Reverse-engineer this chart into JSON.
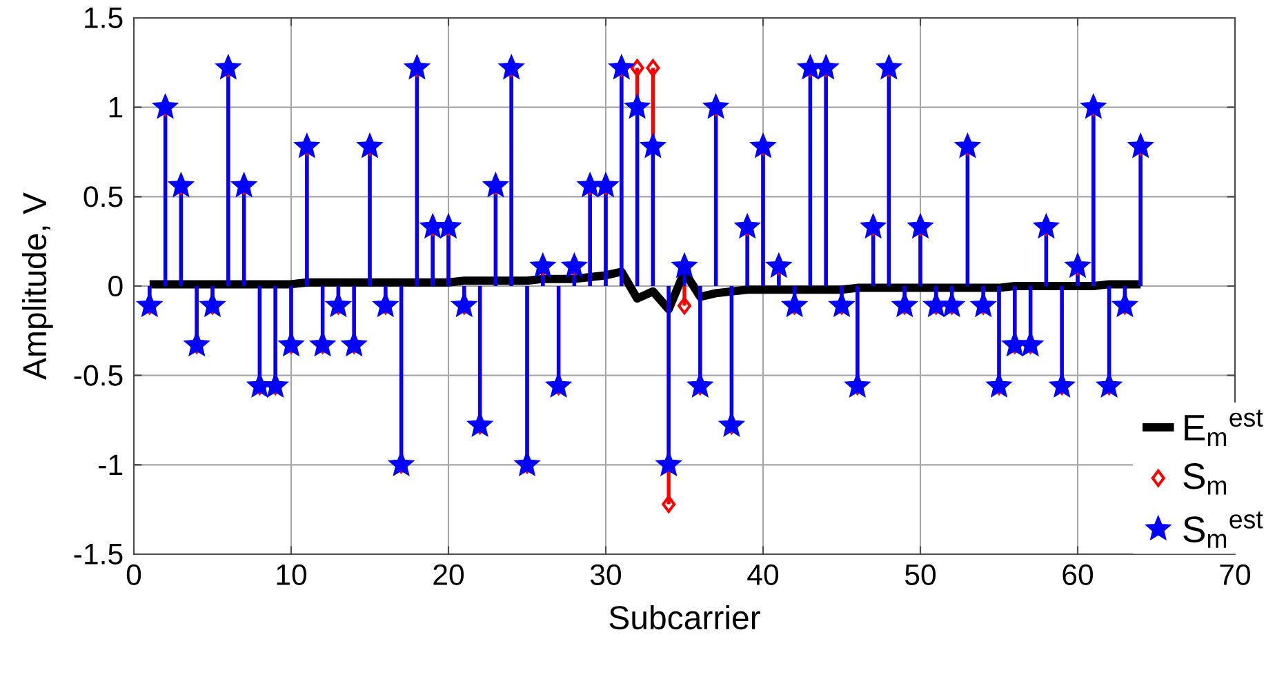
{
  "chart_data": {
    "type": "lollipop",
    "xlabel": "Subcarrier",
    "ylabel": "Amplitude, V",
    "x": [
      1,
      2,
      3,
      4,
      5,
      6,
      7,
      8,
      9,
      10,
      11,
      12,
      13,
      14,
      15,
      16,
      17,
      18,
      19,
      20,
      21,
      22,
      23,
      24,
      25,
      26,
      27,
      28,
      29,
      30,
      31,
      32,
      33,
      34,
      35,
      36,
      37,
      38,
      39,
      40,
      41,
      42,
      43,
      44,
      45,
      46,
      47,
      48,
      49,
      50,
      51,
      52,
      53,
      54,
      55,
      56,
      57,
      58,
      59,
      60,
      61,
      62,
      63,
      64
    ],
    "series": [
      {
        "name": "E$_{m}$$^{est}$",
        "type": "line",
        "color": "#000000",
        "marker": "none",
        "values": [
          0.01,
          0.01,
          0.01,
          0.01,
          0.01,
          0.01,
          0.01,
          0.01,
          0.01,
          0.01,
          0.02,
          0.02,
          0.02,
          0.02,
          0.02,
          0.02,
          0.02,
          0.02,
          0.02,
          0.02,
          0.03,
          0.03,
          0.03,
          0.03,
          0.03,
          0.04,
          0.04,
          0.04,
          0.05,
          0.06,
          0.08,
          -0.07,
          -0.03,
          -0.13,
          0.08,
          -0.06,
          -0.04,
          -0.03,
          -0.02,
          -0.02,
          -0.02,
          -0.02,
          -0.02,
          -0.02,
          -0.02,
          -0.01,
          -0.01,
          -0.01,
          -0.01,
          -0.01,
          -0.01,
          -0.01,
          -0.01,
          -0.01,
          -0.01,
          0.0,
          0.0,
          0.0,
          0.0,
          0.0,
          0.0,
          0.01,
          0.01,
          0.01
        ]
      },
      {
        "name": "S$_{m}$",
        "type": "lollipop",
        "color": "#ff0000",
        "marker": "diamond",
        "values": [
          -0.11,
          1,
          0.56,
          -0.33,
          -0.11,
          1.22,
          0.56,
          -0.56,
          -0.56,
          -0.33,
          0.78,
          -0.33,
          -0.11,
          -0.33,
          0.78,
          -0.11,
          -1,
          1.22,
          0.33,
          0.33,
          -0.11,
          -0.78,
          0.56,
          1.22,
          -1,
          0.11,
          -0.56,
          0.11,
          0.56,
          0.56,
          1.22,
          1.22,
          1.22,
          -1.22,
          -0.11,
          -0.56,
          1,
          -0.78,
          0.33,
          0.78,
          0.11,
          -0.11,
          1.22,
          1.22,
          -0.11,
          -0.56,
          0.33,
          1.22,
          -0.11,
          0.33,
          -0.11,
          -0.11,
          0.78,
          -0.11,
          -0.56,
          -0.33,
          -0.33,
          0.33,
          -0.56,
          0.11,
          1,
          -0.56,
          -0.11,
          0.78
        ]
      },
      {
        "name": "S$_{m}$$^{est}$",
        "type": "lollipop",
        "color": "#0000ff",
        "marker": "star",
        "values": [
          -0.11,
          1,
          0.56,
          -0.33,
          -0.11,
          1.22,
          0.56,
          -0.56,
          -0.56,
          -0.33,
          0.78,
          -0.33,
          -0.11,
          -0.33,
          0.78,
          -0.11,
          -1,
          1.22,
          0.33,
          0.33,
          -0.11,
          -0.78,
          0.56,
          1.22,
          -1,
          0.11,
          -0.56,
          0.11,
          0.56,
          0.56,
          1.22,
          1,
          0.78,
          -1,
          0.11,
          -0.56,
          1,
          -0.78,
          0.33,
          0.78,
          0.11,
          -0.11,
          1.22,
          1.22,
          -0.11,
          -0.56,
          0.33,
          1.22,
          -0.11,
          0.33,
          -0.11,
          -0.11,
          0.78,
          -0.11,
          -0.56,
          -0.33,
          -0.33,
          0.33,
          -0.56,
          0.11,
          1,
          -0.56,
          -0.11,
          0.78
        ]
      }
    ],
    "xlim": [
      0,
      70
    ],
    "xticks": [
      0,
      10,
      20,
      30,
      40,
      50,
      60,
      70
    ],
    "ylim": [
      -1.5,
      1.5
    ],
    "yticks": [
      -1.5,
      -1,
      -0.5,
      0,
      0.5,
      1,
      1.5
    ],
    "grid": true,
    "legend": "bottom right"
  }
}
